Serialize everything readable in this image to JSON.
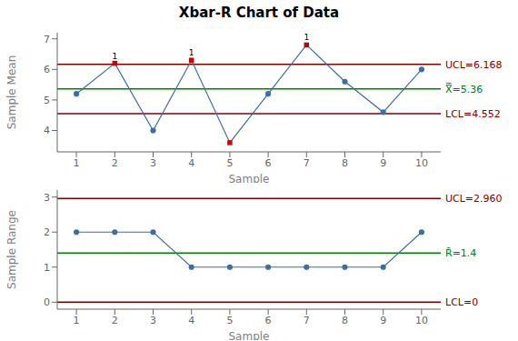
{
  "chart_data": [
    {
      "type": "line",
      "title": "Xbar-R Chart of Data",
      "xlabel": "Sample",
      "ylabel": "Sample Mean",
      "x": [
        1,
        2,
        3,
        4,
        5,
        6,
        7,
        8,
        9,
        10
      ],
      "xlim": [
        0.5,
        10.5
      ],
      "xticks": [
        1,
        2,
        3,
        4,
        5,
        6,
        7,
        8,
        9,
        10
      ],
      "ylim": [
        3.3,
        7.2
      ],
      "yticks": [
        4,
        5,
        6,
        7
      ],
      "grid": false,
      "series": [
        {
          "type": "line",
          "color": "#3a6ea5",
          "values": [
            5.2,
            6.2,
            4.0,
            6.3,
            3.6,
            5.2,
            6.8,
            5.6,
            4.6,
            6.0
          ]
        },
        {
          "type": "scatter",
          "color": "#3a6ea5",
          "marker": "circle",
          "values": [
            5.2,
            null,
            4.0,
            null,
            null,
            5.2,
            null,
            5.6,
            4.6,
            6.0
          ]
        },
        {
          "type": "scatter",
          "color": "#cc0000",
          "marker": "square",
          "values": [
            null,
            6.2,
            null,
            6.3,
            3.6,
            null,
            6.8,
            null,
            null,
            null
          ]
        }
      ],
      "reference_lines": [
        {
          "value": 6.168,
          "label": "UCL=6.168",
          "color": "#800000"
        },
        {
          "value": 5.36,
          "label": "X̿=5.36",
          "color": "#008000"
        },
        {
          "value": 4.552,
          "label": "LCL=4.552",
          "color": "#800000"
        }
      ],
      "annotations": [
        {
          "x": 2,
          "text": "1"
        },
        {
          "x": 4,
          "text": "1"
        },
        {
          "x": 7,
          "text": "1"
        }
      ]
    },
    {
      "type": "line",
      "xlabel": "Sample",
      "ylabel": "Sample Range",
      "x": [
        1,
        2,
        3,
        4,
        5,
        6,
        7,
        8,
        9,
        10
      ],
      "xlim": [
        0.5,
        10.5
      ],
      "xticks": [
        1,
        2,
        3,
        4,
        5,
        6,
        7,
        8,
        9,
        10
      ],
      "ylim": [
        -0.2,
        3.2
      ],
      "yticks": [
        0,
        1,
        2,
        3
      ],
      "grid": false,
      "series": [
        {
          "type": "line",
          "color": "#3a6ea5",
          "values": [
            2,
            2,
            2,
            1,
            1,
            1,
            1,
            1,
            1,
            2
          ]
        },
        {
          "type": "scatter",
          "color": "#3a6ea5",
          "marker": "circle",
          "values": [
            2,
            2,
            2,
            1,
            1,
            1,
            1,
            1,
            1,
            2
          ]
        }
      ],
      "reference_lines": [
        {
          "value": 2.96,
          "label": "UCL=2.960",
          "color": "#800000"
        },
        {
          "value": 1.4,
          "label": "R̄=1.4",
          "color": "#008000"
        },
        {
          "value": 0,
          "label": "LCL=0",
          "color": "#800000"
        }
      ]
    }
  ]
}
